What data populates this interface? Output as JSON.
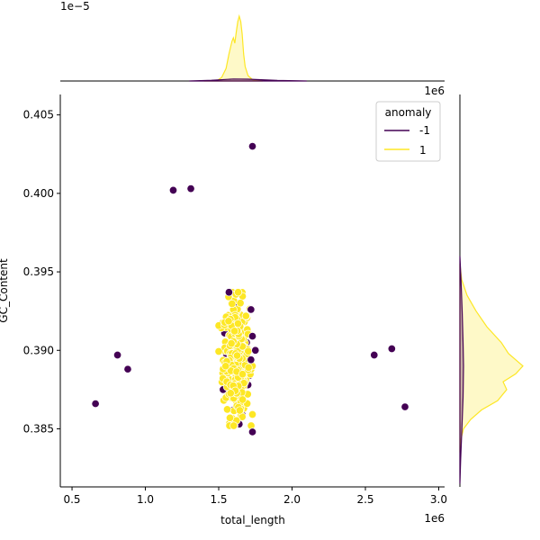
{
  "chart_data": {
    "type": "scatter",
    "xlabel": "total_length",
    "ylabel": "GC_Content",
    "x_offset_text": "1e6",
    "top_margin_offset_text": "1e−5",
    "right_margin_offset_text": "1e6",
    "xlim": [
      0.42,
      3.04
    ],
    "ylim": [
      0.3813,
      0.4063
    ],
    "x_ticks": [
      0.5,
      1.0,
      1.5,
      2.0,
      2.5,
      3.0
    ],
    "x_tick_labels": [
      "0.5",
      "1.0",
      "1.5",
      "2.0",
      "2.5",
      "3.0"
    ],
    "y_ticks": [
      0.385,
      0.39,
      0.395,
      0.4,
      0.405
    ],
    "y_tick_labels": [
      "0.385",
      "0.390",
      "0.395",
      "0.400",
      "0.405"
    ],
    "legend": {
      "title": "anomaly",
      "placement": "top-right",
      "entries": [
        {
          "label": "-1",
          "color": "#440154"
        },
        {
          "label": "1",
          "color": "#fde725"
        }
      ]
    },
    "colors": {
      "anomaly": "#440154",
      "normal": "#fde725"
    },
    "series": [
      {
        "name": "-1",
        "color": "#440154",
        "points": [
          [
            1.73,
            0.403
          ],
          [
            1.19,
            0.4002
          ],
          [
            1.31,
            0.4003
          ],
          [
            1.72,
            0.3926
          ],
          [
            0.81,
            0.3897
          ],
          [
            0.88,
            0.3888
          ],
          [
            0.66,
            0.3866
          ],
          [
            2.56,
            0.3897
          ],
          [
            2.68,
            0.3901
          ],
          [
            2.77,
            0.3864
          ],
          [
            1.73,
            0.3848
          ],
          [
            1.75,
            0.39
          ],
          [
            1.73,
            0.3909
          ],
          [
            1.72,
            0.3894
          ],
          [
            1.57,
            0.3937
          ],
          [
            1.55,
            0.3898
          ],
          [
            1.58,
            0.3888
          ],
          [
            1.65,
            0.3883
          ],
          [
            1.7,
            0.3878
          ],
          [
            1.6,
            0.3862
          ],
          [
            1.53,
            0.3875
          ],
          [
            1.62,
            0.3928
          ],
          [
            1.69,
            0.3905
          ],
          [
            1.56,
            0.3892
          ],
          [
            1.71,
            0.3884
          ],
          [
            1.66,
            0.3859
          ],
          [
            1.54,
            0.3911
          ],
          [
            1.68,
            0.392
          ],
          [
            1.59,
            0.393
          ],
          [
            1.64,
            0.3853
          ]
        ]
      },
      {
        "name": "1",
        "color": "#fde725",
        "center": [
          1.62,
          0.3895
        ],
        "spread": [
          0.045,
          0.0018
        ],
        "count": 320,
        "x_range": [
          1.5,
          1.73
        ],
        "y_range": [
          0.3852,
          0.3937
        ]
      }
    ]
  }
}
